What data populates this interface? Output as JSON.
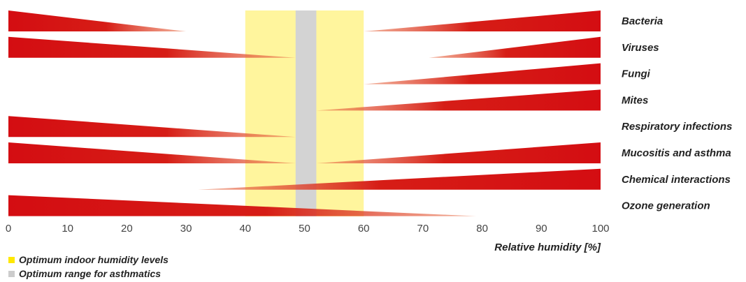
{
  "chart_data": {
    "type": "bar",
    "xlabel": "Relative humidity [%]",
    "xlim": [
      0,
      100
    ],
    "xticks": [
      "0",
      "10",
      "20",
      "30",
      "40",
      "50",
      "60",
      "70",
      "80",
      "90",
      "100"
    ],
    "bands": [
      {
        "label": "Optimum indoor humidity levels",
        "from": 40,
        "to": 60,
        "color": "#fff59d"
      },
      {
        "label": "Optimum range for asthmatics",
        "from": 48.5,
        "to": 52,
        "color": "#d3d3d3"
      }
    ],
    "rows": [
      {
        "label": "Bacteria",
        "low": {
          "end": 30
        },
        "high": {
          "start": 60
        }
      },
      {
        "label": "Viruses",
        "low": {
          "end": 48.5
        },
        "high": {
          "start": 71
        }
      },
      {
        "label": "Fungi",
        "low": null,
        "high": {
          "start": 60
        }
      },
      {
        "label": "Mites",
        "low": null,
        "high": {
          "start": 52
        }
      },
      {
        "label": "Respiratory infections",
        "low": {
          "end": 48.5
        },
        "high": null
      },
      {
        "label": "Mucositis and asthma",
        "low": {
          "end": 48.5
        },
        "high": {
          "start": 52
        }
      },
      {
        "label": "Chemical interactions",
        "low": null,
        "high": {
          "start": 32
        }
      },
      {
        "label": "Ozone generation",
        "low": {
          "end": 79
        },
        "high": null
      }
    ],
    "colors": {
      "bar": "#d40d12",
      "bar_fade": "#e8724a"
    }
  },
  "legend": {
    "optimum": {
      "label": "Optimum indoor humidity levels",
      "color": "#ffe800"
    },
    "asthma": {
      "label": "Optimum range for asthmatics",
      "color": "#cccccc"
    }
  }
}
